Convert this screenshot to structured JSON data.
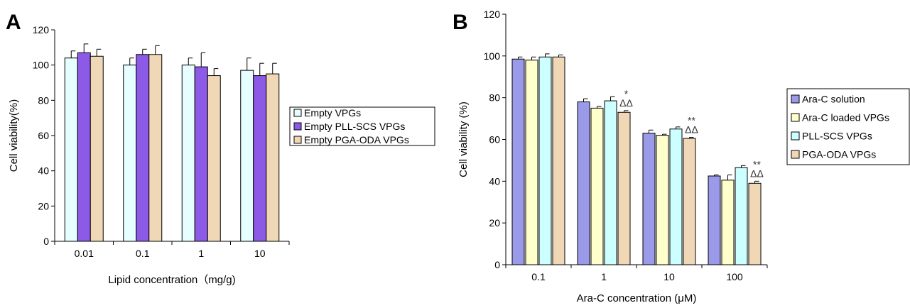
{
  "colors": {
    "empty_vpgs": "#e6feff",
    "empty_pll_scs": "#8c5ae6",
    "empty_pga_oda": "#f0d8b7",
    "ara_c_solution": "#9a9ae8",
    "ara_c_loaded": "#ffffcc",
    "pll_scs_vpgs": "#ccffff",
    "pga_oda_vpgs": "#f0d8b7"
  },
  "chart_data": [
    {
      "panel": "A",
      "type": "bar",
      "categories": [
        "0.01",
        "0.1",
        "1",
        "10"
      ],
      "xlabel": "Lipid concentration（mg/g)",
      "ylabel": "Cell viability(%)",
      "ylim": [
        0,
        120
      ],
      "yticks": [
        "0",
        "20",
        "40",
        "60",
        "80",
        "100",
        "120"
      ],
      "legend_position": "right",
      "series": [
        {
          "name": "Empty VPGs",
          "color_key": "empty_vpgs",
          "values": [
            104,
            100,
            100,
            97
          ],
          "errors": [
            4,
            4,
            4,
            7
          ]
        },
        {
          "name": "Empty PLL-SCS VPGs",
          "color_key": "empty_pll_scs",
          "values": [
            107,
            106,
            99,
            94
          ],
          "errors": [
            5,
            3,
            8,
            7
          ]
        },
        {
          "name": "Empty PGA-ODA VPGs",
          "color_key": "empty_pga_oda",
          "values": [
            105,
            106,
            94,
            95
          ],
          "errors": [
            4,
            5,
            4,
            6
          ]
        }
      ],
      "annotations": []
    },
    {
      "panel": "B",
      "type": "bar",
      "categories": [
        "0.1",
        "1",
        "10",
        "100"
      ],
      "xlabel": "Ara-C concentration (μM)",
      "ylabel": "Cell viability (%)",
      "ylim": [
        0,
        120
      ],
      "yticks": [
        "0",
        "20",
        "40",
        "60",
        "80",
        "100",
        "120"
      ],
      "legend_position": "right",
      "series": [
        {
          "name": "Ara-C solution",
          "color_key": "ara_c_solution",
          "values": [
            98.5,
            78,
            63,
            42.5
          ],
          "errors": [
            1,
            1.5,
            1.5,
            0.5
          ]
        },
        {
          "name": "Ara-C loaded VPGs",
          "color_key": "ara_c_loaded",
          "values": [
            98,
            75,
            62,
            40.5
          ],
          "errors": [
            1.5,
            0.8,
            0.5,
            2.5
          ]
        },
        {
          "name": "PLL-SCS VPGs",
          "color_key": "pll_scs_vpgs",
          "values": [
            99.5,
            78.5,
            65,
            46.5
          ],
          "errors": [
            1.5,
            2,
            1,
            1
          ]
        },
        {
          "name": "PGA-ODA VPGs",
          "color_key": "pga_oda_vpgs",
          "values": [
            99.5,
            73,
            60.5,
            39
          ],
          "errors": [
            1,
            0.8,
            0.5,
            1
          ]
        }
      ],
      "annotations": [
        {
          "category_index": 1,
          "stars": "*",
          "triangles": "ΔΔ"
        },
        {
          "category_index": 2,
          "stars": "**",
          "triangles": "ΔΔ"
        },
        {
          "category_index": 3,
          "stars": "**",
          "triangles": "ΔΔ"
        }
      ]
    }
  ]
}
